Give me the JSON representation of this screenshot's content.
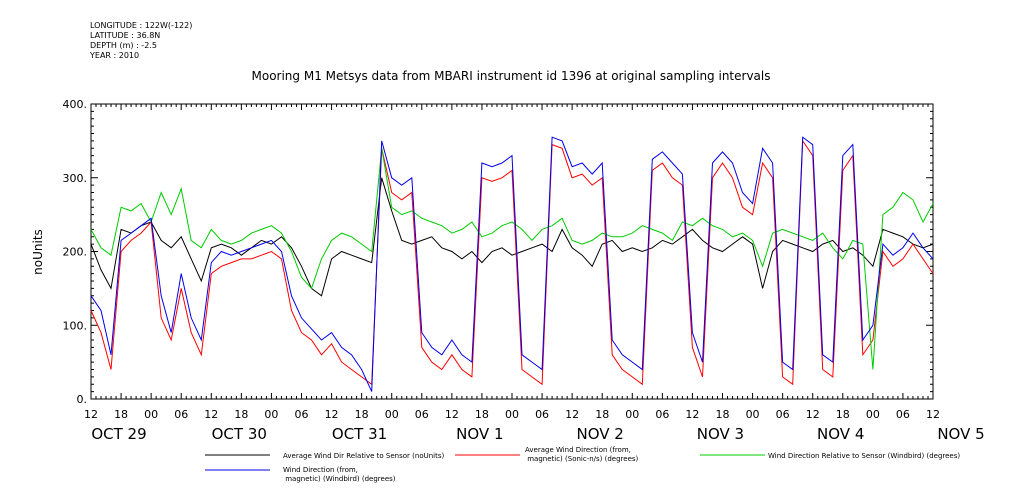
{
  "meta": {
    "longitude": "LONGITUDE : 122W(-122)",
    "latitude": "LATITUDE : 36.8N",
    "depth": "DEPTH (m) : -2.5",
    "year": "YEAR : 2010"
  },
  "chart_data": {
    "type": "line",
    "title": "Mooring M1 Metsys data from MBARI instrument id 1396 at original sampling intervals",
    "ylabel": "noUnits",
    "xlabel": "",
    "ylim": [
      0,
      400
    ],
    "xlim_hours": [
      0,
      168
    ],
    "yticks": [
      0,
      100,
      200,
      300,
      400
    ],
    "ytick_labels": [
      "0.",
      "100.",
      "200.",
      "300.",
      "400."
    ],
    "hour_ticks": [
      "12",
      "18",
      "00",
      "06",
      "12",
      "18",
      "00",
      "06",
      "12",
      "18",
      "00",
      "06",
      "12",
      "18",
      "00",
      "06",
      "12",
      "18",
      "00",
      "06",
      "12",
      "18",
      "00",
      "06",
      "12",
      "18",
      "00",
      "06",
      "12"
    ],
    "date_labels": [
      {
        "label": "OCT 29",
        "hour": 0
      },
      {
        "label": "OCT 30",
        "hour": 24
      },
      {
        "label": "OCT 31",
        "hour": 48
      },
      {
        "label": "NOV  1",
        "hour": 72
      },
      {
        "label": "NOV  2",
        "hour": 96
      },
      {
        "label": "NOV  3",
        "hour": 120
      },
      {
        "label": "NOV  4",
        "hour": 144
      },
      {
        "label": "NOV  5",
        "hour": 168
      }
    ],
    "series": [
      {
        "name": "Average Wind Dir Relative to Sensor (noUnits)",
        "color": "#000000",
        "x": [
          0,
          2,
          4,
          6,
          8,
          10,
          12,
          14,
          16,
          18,
          20,
          22,
          24,
          26,
          28,
          30,
          32,
          34,
          36,
          38,
          40,
          42,
          44,
          46,
          48,
          50,
          52,
          54,
          56,
          58,
          60,
          62,
          64,
          66,
          68,
          70,
          72,
          74,
          76,
          78,
          80,
          82,
          84,
          86,
          88,
          90,
          92,
          94,
          96,
          98,
          100,
          102,
          104,
          106,
          108,
          110,
          112,
          114,
          116,
          118,
          120,
          122,
          124,
          126,
          128,
          130,
          132,
          134,
          136,
          138,
          140,
          142,
          144,
          146,
          148,
          150,
          152,
          154,
          156,
          158,
          160,
          162,
          164,
          166,
          168
        ],
        "y": [
          210,
          175,
          150,
          230,
          225,
          235,
          240,
          215,
          205,
          220,
          190,
          160,
          205,
          210,
          205,
          195,
          205,
          215,
          210,
          220,
          205,
          180,
          150,
          140,
          190,
          200,
          195,
          190,
          185,
          300,
          255,
          215,
          210,
          215,
          220,
          205,
          200,
          190,
          200,
          185,
          200,
          205,
          195,
          200,
          205,
          210,
          200,
          230,
          205,
          195,
          180,
          210,
          215,
          200,
          205,
          200,
          205,
          215,
          210,
          220,
          230,
          215,
          205,
          200,
          210,
          220,
          210,
          150,
          200,
          215,
          210,
          205,
          200,
          210,
          215,
          200,
          205,
          195,
          180,
          230,
          225,
          220,
          210,
          205,
          210
        ]
      },
      {
        "name": "Average Wind Direction (from, magnetic) (Sonic-n/s) (degrees)",
        "color": "#ff0000",
        "x": [
          0,
          2,
          4,
          6,
          8,
          10,
          12,
          14,
          16,
          18,
          20,
          22,
          24,
          26,
          28,
          30,
          32,
          34,
          36,
          38,
          40,
          42,
          44,
          46,
          48,
          50,
          52,
          54,
          56,
          58,
          60,
          62,
          64,
          66,
          68,
          70,
          72,
          74,
          76,
          78,
          80,
          82,
          84,
          86,
          88,
          90,
          92,
          94,
          96,
          98,
          100,
          102,
          104,
          106,
          108,
          110,
          112,
          114,
          116,
          118,
          120,
          122,
          124,
          126,
          128,
          130,
          132,
          134,
          136,
          138,
          140,
          142,
          144,
          146,
          148,
          150,
          152,
          154,
          156,
          158,
          160,
          162,
          164,
          166,
          168
        ],
        "y": [
          120,
          90,
          40,
          200,
          215,
          225,
          240,
          110,
          80,
          150,
          90,
          60,
          170,
          180,
          185,
          190,
          190,
          195,
          200,
          190,
          120,
          90,
          80,
          60,
          75,
          50,
          40,
          30,
          20,
          340,
          280,
          270,
          280,
          70,
          50,
          40,
          60,
          40,
          30,
          300,
          295,
          300,
          310,
          40,
          30,
          20,
          345,
          340,
          300,
          305,
          290,
          300,
          60,
          40,
          30,
          20,
          310,
          320,
          300,
          290,
          70,
          30,
          300,
          320,
          300,
          260,
          250,
          320,
          300,
          30,
          20,
          350,
          330,
          40,
          30,
          310,
          330,
          60,
          80,
          200,
          180,
          190,
          210,
          190,
          170
        ]
      },
      {
        "name": "Wind Direction Relative to Sensor (Windbird) (degrees)",
        "color": "#00cc00",
        "x": [
          0,
          2,
          4,
          6,
          8,
          10,
          12,
          14,
          16,
          18,
          20,
          22,
          24,
          26,
          28,
          30,
          32,
          34,
          36,
          38,
          40,
          42,
          44,
          46,
          48,
          50,
          52,
          54,
          56,
          58,
          60,
          62,
          64,
          66,
          68,
          70,
          72,
          74,
          76,
          78,
          80,
          82,
          84,
          86,
          88,
          90,
          92,
          94,
          96,
          98,
          100,
          102,
          104,
          106,
          108,
          110,
          112,
          114,
          116,
          118,
          120,
          122,
          124,
          126,
          128,
          130,
          132,
          134,
          136,
          138,
          140,
          142,
          144,
          146,
          148,
          150,
          152,
          154,
          156,
          158,
          160,
          162,
          164,
          166,
          168
        ],
        "y": [
          230,
          205,
          195,
          260,
          255,
          265,
          240,
          280,
          250,
          285,
          215,
          205,
          230,
          215,
          210,
          215,
          225,
          230,
          235,
          225,
          200,
          165,
          150,
          190,
          215,
          225,
          220,
          210,
          200,
          340,
          260,
          250,
          255,
          245,
          240,
          235,
          225,
          230,
          240,
          220,
          225,
          235,
          240,
          230,
          215,
          230,
          235,
          245,
          215,
          210,
          215,
          225,
          220,
          220,
          225,
          235,
          230,
          225,
          215,
          240,
          235,
          245,
          235,
          230,
          220,
          225,
          215,
          180,
          225,
          230,
          225,
          220,
          215,
          225,
          205,
          190,
          215,
          210,
          40,
          250,
          260,
          280,
          270,
          240,
          265
        ]
      },
      {
        "name": "Wind Direction (from, magnetic) (Windbird) (degrees)",
        "color": "#0000ee",
        "x": [
          0,
          2,
          4,
          6,
          8,
          10,
          12,
          14,
          16,
          18,
          20,
          22,
          24,
          26,
          28,
          30,
          32,
          34,
          36,
          38,
          40,
          42,
          44,
          46,
          48,
          50,
          52,
          54,
          56,
          58,
          60,
          62,
          64,
          66,
          68,
          70,
          72,
          74,
          76,
          78,
          80,
          82,
          84,
          86,
          88,
          90,
          92,
          94,
          96,
          98,
          100,
          102,
          104,
          106,
          108,
          110,
          112,
          114,
          116,
          118,
          120,
          122,
          124,
          126,
          128,
          130,
          132,
          134,
          136,
          138,
          140,
          142,
          144,
          146,
          148,
          150,
          152,
          154,
          156,
          158,
          160,
          162,
          164,
          166,
          168
        ],
        "y": [
          140,
          120,
          60,
          215,
          225,
          235,
          245,
          140,
          90,
          170,
          110,
          80,
          185,
          200,
          195,
          200,
          205,
          210,
          215,
          200,
          140,
          110,
          95,
          80,
          90,
          70,
          60,
          40,
          10,
          350,
          300,
          290,
          300,
          90,
          70,
          60,
          80,
          60,
          50,
          320,
          315,
          320,
          330,
          60,
          50,
          40,
          355,
          350,
          315,
          320,
          305,
          320,
          80,
          60,
          50,
          40,
          325,
          335,
          320,
          305,
          90,
          50,
          320,
          335,
          320,
          280,
          265,
          340,
          320,
          50,
          40,
          355,
          345,
          60,
          50,
          330,
          345,
          80,
          100,
          210,
          195,
          205,
          225,
          205,
          190
        ]
      }
    ]
  }
}
